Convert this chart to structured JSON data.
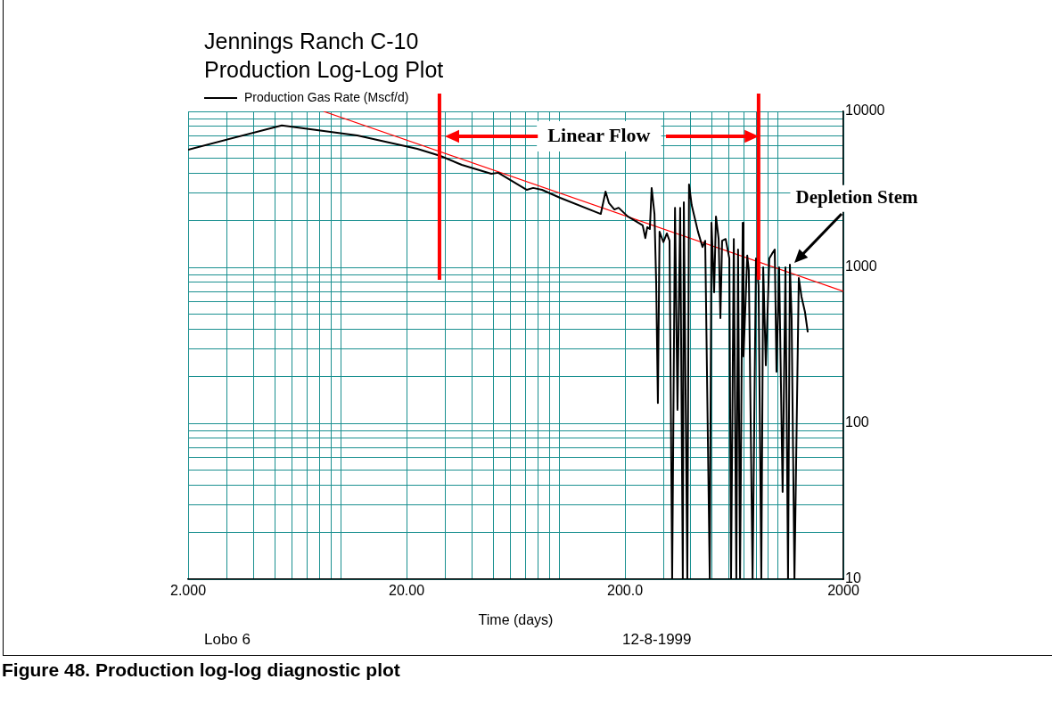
{
  "chart_data": {
    "type": "line",
    "title": "Jennings Ranch C-10",
    "subtitle": "Production Log-Log Plot",
    "xlabel": "Time (days)",
    "log": "xy",
    "grid": true,
    "legend": "top left",
    "marker": "none",
    "xlim": [
      2,
      2000
    ],
    "ylim": [
      10,
      10000
    ],
    "xticks": [
      {
        "value": 2,
        "label": "2.000"
      },
      {
        "value": 3,
        "label": null
      },
      {
        "value": 4,
        "label": null
      },
      {
        "value": 5,
        "label": null
      },
      {
        "value": 6,
        "label": null
      },
      {
        "value": 7,
        "label": null
      },
      {
        "value": 8,
        "label": null
      },
      {
        "value": 9,
        "label": null
      },
      {
        "value": 10,
        "label": null
      },
      {
        "value": 20,
        "label": "20.00"
      },
      {
        "value": 30,
        "label": null
      },
      {
        "value": 40,
        "label": null
      },
      {
        "value": 50,
        "label": null
      },
      {
        "value": 60,
        "label": null
      },
      {
        "value": 70,
        "label": null
      },
      {
        "value": 80,
        "label": null
      },
      {
        "value": 90,
        "label": null
      },
      {
        "value": 100,
        "label": null
      },
      {
        "value": 200,
        "label": "200.0"
      },
      {
        "value": 300,
        "label": null
      },
      {
        "value": 400,
        "label": null
      },
      {
        "value": 500,
        "label": null
      },
      {
        "value": 600,
        "label": null
      },
      {
        "value": 700,
        "label": null
      },
      {
        "value": 800,
        "label": null
      },
      {
        "value": 900,
        "label": null
      },
      {
        "value": 1000,
        "label": null
      },
      {
        "value": 2000,
        "label": "2000"
      }
    ],
    "yticks": [
      10,
      {
        "value": 20,
        "label": null
      },
      {
        "value": 30,
        "label": null
      },
      {
        "value": 40,
        "label": null
      },
      {
        "value": 50,
        "label": null
      },
      {
        "value": 60,
        "label": null
      },
      {
        "value": 70,
        "label": null
      },
      {
        "value": 80,
        "label": null
      },
      {
        "value": 90,
        "label": null
      },
      100,
      {
        "value": 200,
        "label": null
      },
      {
        "value": 300,
        "label": null
      },
      {
        "value": 400,
        "label": null
      },
      {
        "value": 500,
        "label": null
      },
      {
        "value": 600,
        "label": null
      },
      {
        "value": 700,
        "label": null
      },
      {
        "value": 800,
        "label": null
      },
      {
        "value": 900,
        "label": null
      },
      1000,
      {
        "value": 2000,
        "label": null
      },
      {
        "value": 3000,
        "label": null
      },
      {
        "value": 4000,
        "label": null
      },
      {
        "value": 5000,
        "label": null
      },
      {
        "value": 6000,
        "label": null
      },
      {
        "value": 7000,
        "label": null
      },
      {
        "value": 8000,
        "label": null
      },
      {
        "value": 9000,
        "label": null
      },
      10000
    ],
    "series": [
      {
        "name": "Production Gas Rate (Mscf/d)",
        "color": "#000000",
        "x": [
          2,
          5.37,
          11.9,
          22.4,
          28.6,
          35.8,
          48.9,
          52.6,
          71.1,
          76,
          83.4,
          101,
          155,
          163,
          169,
          179,
          187,
          206,
          241,
          248,
          253,
          260,
          265,
          273,
          278,
          283,
          288,
          300,
          311,
          320,
          329,
          339,
          348,
          358,
          368,
          372,
          386,
          393,
          404,
          432,
          453,
          466,
          489,
          498,
          512,
          522,
          537,
          547,
          557,
          578,
          601,
          612,
          630,
          647,
          659,
          673,
          692,
          698,
          726,
          738,
          768,
          796,
          818,
          842,
          859,
          883,
          916,
          942,
          970,
          988,
          1016,
          1054,
          1086,
          1116,
          1138,
          1159,
          1194,
          1250,
          1286,
          1334,
          1374
        ],
        "values": [
          5680,
          8130,
          7010,
          5750,
          5180,
          4540,
          3980,
          4040,
          3140,
          3230,
          3140,
          2790,
          2200,
          3060,
          2580,
          2350,
          2410,
          2120,
          1860,
          1540,
          1810,
          1760,
          3230,
          2200,
          789,
          135,
          1690,
          1450,
          1650,
          1480,
          10,
          2410,
          122,
          2410,
          10,
          2610,
          10,
          3400,
          2510,
          1690,
          1350,
          1480,
          10,
          1930,
          692,
          2120,
          1520,
          472,
          1480,
          1520,
          1140,
          10,
          1520,
          10,
          1300,
          10,
          1930,
          268,
          1190,
          961,
          10,
          1140,
          769,
          10,
          1000,
          235,
          1140,
          1220,
          1300,
          214,
          1000,
          36.3,
          1000,
          10,
          1040,
          472,
          10,
          853,
          648,
          518,
          383
        ]
      },
      {
        "type": "line",
        "color": "#ff0000",
        "x": [
          8.34,
          2000
        ],
        "values": [
          10000,
          702
        ]
      }
    ],
    "ref_lines": [
      {
        "axis": "x",
        "value": 28.3,
        "color": "#ff0000"
      },
      {
        "axis": "x",
        "value": 818,
        "color": "#ff0000"
      }
    ],
    "annotations": [
      "Linear Flow",
      {
        "text": "Depletion Stem",
        "x": 1138,
        "y": 1070
      },
      "Lobo 6",
      "12-8-1999",
      "Figure 48.  Production log-log diagnostic plot"
    ]
  }
}
